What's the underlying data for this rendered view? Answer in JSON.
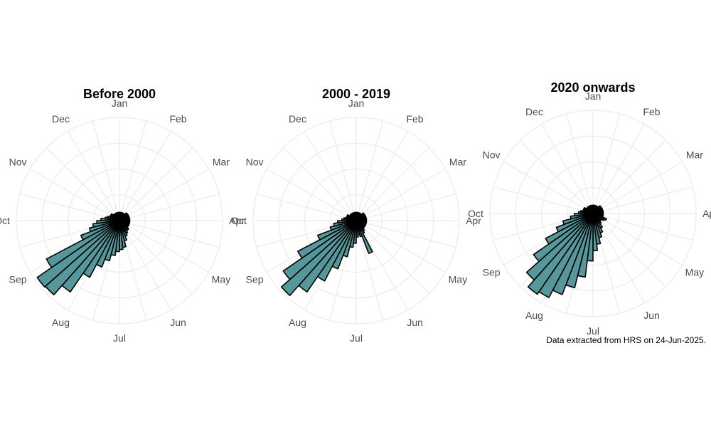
{
  "caption": "Data extracted from HRS on 24-Jun-2025.",
  "chart_data": [
    {
      "type": "bar",
      "subtype": "polar-rose",
      "title": "Before 2000",
      "months": [
        "Jan",
        "Feb",
        "Mar",
        "Apr",
        "May",
        "Jun",
        "Jul",
        "Aug",
        "Sep",
        "Oct",
        "Nov",
        "Dec"
      ],
      "x": [
        1,
        2,
        3,
        4,
        5,
        6,
        7,
        8,
        9,
        10,
        11,
        12,
        13,
        14,
        15,
        16,
        17,
        18,
        19,
        20,
        21,
        22,
        23,
        24,
        25,
        26,
        27,
        28,
        29,
        30,
        31,
        32,
        33,
        34,
        35,
        36,
        37,
        38,
        39,
        40,
        41,
        42,
        43,
        44,
        45,
        46,
        47,
        48,
        49,
        50,
        51,
        52
      ],
      "values": [
        0.08,
        0.08,
        0.08,
        0.08,
        0.08,
        0.08,
        0.1,
        0.1,
        0.1,
        0.1,
        0.1,
        0.1,
        0.1,
        0.1,
        0.1,
        0.1,
        0.1,
        0.1,
        0.1,
        0.12,
        0.12,
        0.14,
        0.16,
        0.2,
        0.26,
        0.28,
        0.3,
        0.34,
        0.4,
        0.48,
        0.62,
        0.84,
        0.96,
        0.97,
        0.8,
        0.4,
        0.3,
        0.26,
        0.22,
        0.18,
        0.14,
        0.12,
        0.1,
        0.1,
        0.1,
        0.08,
        0.08,
        0.08,
        0.08,
        0.08,
        0.08,
        0.08
      ],
      "color": "#55979b",
      "grid": true
    },
    {
      "type": "bar",
      "subtype": "polar-rose",
      "title": "2000 - 2019",
      "months": [
        "Jan",
        "Feb",
        "Mar",
        "Apr",
        "May",
        "Jun",
        "Jul",
        "Aug",
        "Sep",
        "Oct",
        "Nov",
        "Dec"
      ],
      "x": [
        1,
        2,
        3,
        4,
        5,
        6,
        7,
        8,
        9,
        10,
        11,
        12,
        13,
        14,
        15,
        16,
        17,
        18,
        19,
        20,
        21,
        22,
        23,
        24,
        25,
        26,
        27,
        28,
        29,
        30,
        31,
        32,
        33,
        34,
        35,
        36,
        37,
        38,
        39,
        40,
        41,
        42,
        43,
        44,
        45,
        46,
        47,
        48,
        49,
        50,
        51,
        52
      ],
      "values": [
        0.08,
        0.08,
        0.08,
        0.08,
        0.08,
        0.08,
        0.1,
        0.1,
        0.1,
        0.1,
        0.1,
        0.1,
        0.1,
        0.1,
        0.1,
        0.1,
        0.1,
        0.1,
        0.1,
        0.1,
        0.12,
        0.14,
        0.34,
        0.16,
        0.14,
        0.16,
        0.22,
        0.26,
        0.36,
        0.5,
        0.66,
        0.84,
        0.97,
        0.86,
        0.64,
        0.4,
        0.26,
        0.22,
        0.18,
        0.14,
        0.12,
        0.1,
        0.1,
        0.1,
        0.08,
        0.08,
        0.08,
        0.08,
        0.08,
        0.08,
        0.08,
        0.08
      ],
      "color": "#55979b",
      "grid": true
    },
    {
      "type": "bar",
      "subtype": "polar-rose",
      "title": "2020 onwards",
      "months": [
        "Jan",
        "Feb",
        "Mar",
        "Apr",
        "May",
        "Jun",
        "Jul",
        "Aug",
        "Sep",
        "Oct",
        "Nov",
        "Dec"
      ],
      "x": [
        1,
        2,
        3,
        4,
        5,
        6,
        7,
        8,
        9,
        10,
        11,
        12,
        13,
        14,
        15,
        16,
        17,
        18,
        19,
        20,
        21,
        22,
        23,
        24,
        25,
        26,
        27,
        28,
        29,
        30,
        31,
        32,
        33,
        34,
        35,
        36,
        37,
        38,
        39,
        40,
        41,
        42,
        43,
        44,
        45,
        46,
        47,
        48,
        49,
        50,
        51,
        52
      ],
      "values": [
        0.08,
        0.08,
        0.08,
        0.08,
        0.08,
        0.08,
        0.1,
        0.1,
        0.1,
        0.1,
        0.1,
        0.1,
        0.1,
        0.1,
        0.1,
        0.1,
        0.14,
        0.12,
        0.1,
        0.1,
        0.12,
        0.16,
        0.2,
        0.24,
        0.3,
        0.36,
        0.46,
        0.62,
        0.74,
        0.84,
        0.92,
        0.95,
        0.86,
        0.7,
        0.52,
        0.38,
        0.3,
        0.22,
        0.18,
        0.14,
        0.12,
        0.1,
        0.1,
        0.1,
        0.08,
        0.08,
        0.08,
        0.08,
        0.08,
        0.08,
        0.08,
        0.08
      ],
      "color": "#55979b",
      "grid": true
    }
  ]
}
